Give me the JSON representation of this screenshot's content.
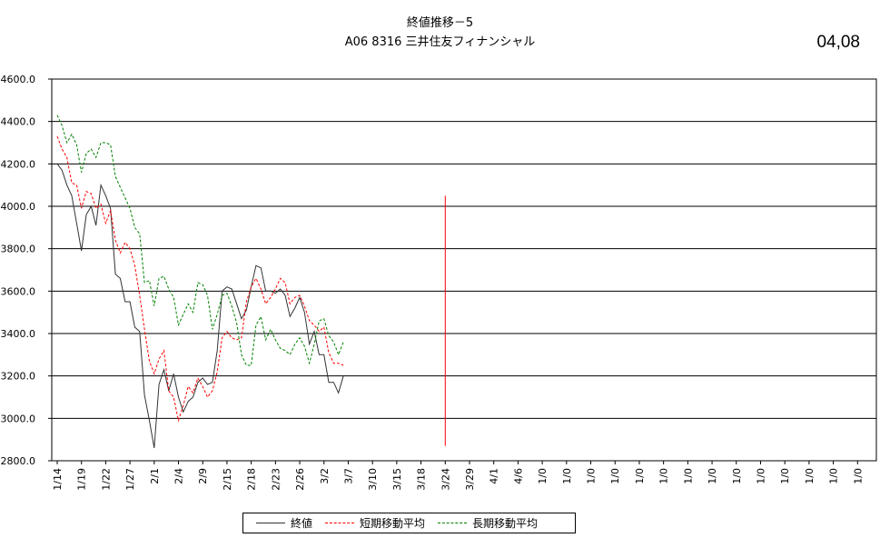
{
  "header": {
    "title_line1": "終値推移－5",
    "title_line2": "A06  8316 三井住友フィナンシャル",
    "corner_code": "04,08"
  },
  "chart_data": {
    "type": "line",
    "ylim": [
      2800,
      4600
    ],
    "y_ticks": [
      "2800.0",
      "3000.0",
      "3200.0",
      "3400.0",
      "3600.0",
      "3800.0",
      "4000.0",
      "4200.0",
      "4400.0",
      "4600.0"
    ],
    "x_tick_labels": [
      "1/14",
      "1/19",
      "1/22",
      "1/27",
      "2/1",
      "2/4",
      "2/9",
      "2/15",
      "2/18",
      "2/23",
      "2/26",
      "3/2",
      "3/7",
      "3/10",
      "3/15",
      "3/18",
      "3/24",
      "3/29",
      "4/1",
      "4/6",
      "1/0",
      "1/0",
      "1/0",
      "1/0",
      "1/0",
      "1/0",
      "1/0",
      "1/0",
      "1/0",
      "1/0",
      "1/0",
      "1/0",
      "1/0",
      "1/0"
    ],
    "legend_position": "bottom",
    "grid": "horizontal",
    "vertical_marker": {
      "x_label": "3/24",
      "from": 2870,
      "to": 4050,
      "color": "#ff0000"
    },
    "series": [
      {
        "name": "終値",
        "color": "#333333",
        "style": "solid",
        "values": [
          4200,
          4170,
          4100,
          4050,
          3920,
          3790,
          3960,
          4000,
          3910,
          4100,
          4050,
          3990,
          3680,
          3660,
          3550,
          3550,
          3430,
          3410,
          3110,
          2990,
          2860,
          3160,
          3230,
          3130,
          3210,
          3100,
          3030,
          3080,
          3100,
          3170,
          3190,
          3160,
          3170,
          3320,
          3600,
          3620,
          3610,
          3540,
          3470,
          3510,
          3620,
          3720,
          3710,
          3600,
          3600,
          3590,
          3610,
          3580,
          3480,
          3520,
          3570,
          3500,
          3350,
          3410,
          3300,
          3300,
          3170,
          3170,
          3120,
          3200
        ]
      },
      {
        "name": "短期移動平均",
        "color": "#ff0000",
        "style": "dashed",
        "values": [
          4330,
          4270,
          4230,
          4110,
          4100,
          3990,
          4070,
          4060,
          3990,
          4010,
          3920,
          3980,
          3840,
          3780,
          3830,
          3800,
          3720,
          3580,
          3420,
          3270,
          3210,
          3280,
          3320,
          3130,
          3100,
          2990,
          3060,
          3150,
          3120,
          3190,
          3150,
          3100,
          3130,
          3220,
          3380,
          3410,
          3380,
          3370,
          3380,
          3550,
          3620,
          3660,
          3610,
          3540,
          3570,
          3610,
          3660,
          3640,
          3540,
          3570,
          3580,
          3530,
          3460,
          3440,
          3410,
          3430,
          3310,
          3260,
          3260,
          3250
        ]
      },
      {
        "name": "長期移動平均",
        "color": "#008000",
        "style": "dashed",
        "values": [
          4430,
          4380,
          4300,
          4340,
          4290,
          4160,
          4250,
          4270,
          4230,
          4300,
          4300,
          4290,
          4140,
          4090,
          4040,
          3990,
          3900,
          3870,
          3640,
          3650,
          3530,
          3660,
          3670,
          3610,
          3570,
          3440,
          3490,
          3540,
          3500,
          3640,
          3630,
          3580,
          3420,
          3490,
          3580,
          3590,
          3530,
          3450,
          3300,
          3250,
          3250,
          3440,
          3480,
          3370,
          3420,
          3370,
          3330,
          3320,
          3300,
          3350,
          3380,
          3340,
          3260,
          3350,
          3460,
          3470,
          3390,
          3360,
          3300,
          3360
        ]
      }
    ]
  }
}
